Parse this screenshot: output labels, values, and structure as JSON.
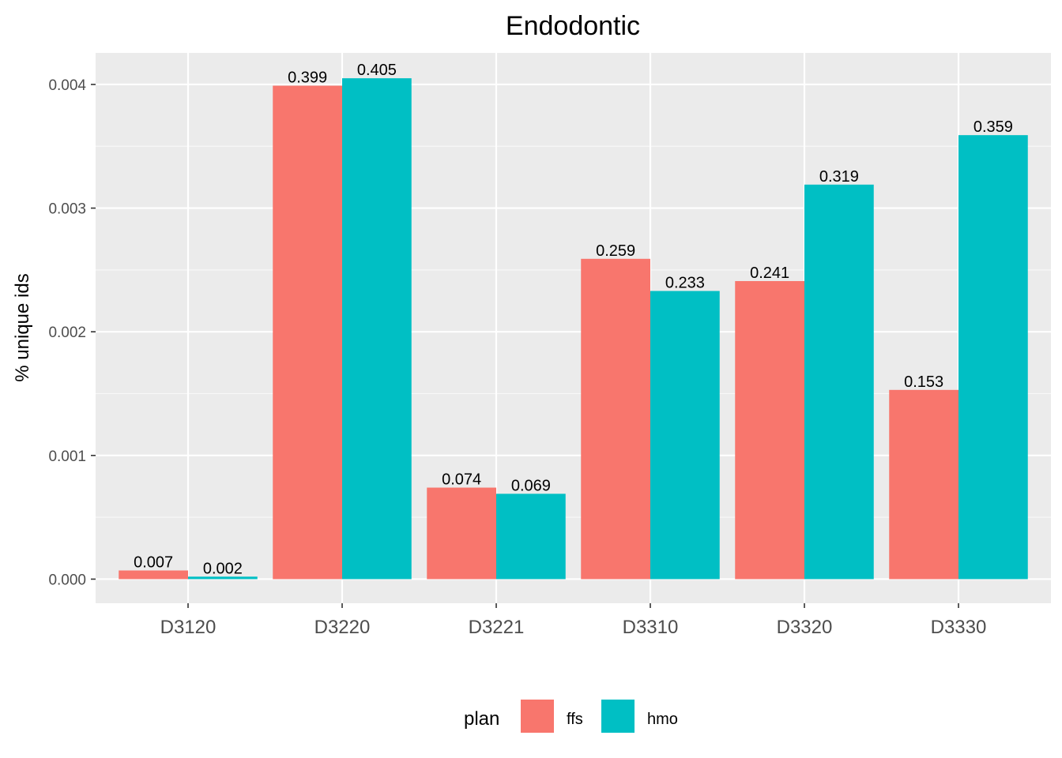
{
  "chart_data": {
    "type": "bar",
    "title": "Endodontic",
    "xlabel": "",
    "ylabel": "% unique ids",
    "categories": [
      "D3120",
      "D3220",
      "D3221",
      "D3310",
      "D3320",
      "D3330"
    ],
    "series": [
      {
        "name": "ffs",
        "color": "#F8766D",
        "values": [
          7e-05,
          0.00399,
          0.00074,
          0.00259,
          0.00241,
          0.00153
        ],
        "labels": [
          "0.007",
          "0.399",
          "0.074",
          "0.259",
          "0.241",
          "0.153"
        ]
      },
      {
        "name": "hmo",
        "color": "#00BFC4",
        "values": [
          2e-05,
          0.00405,
          0.00069,
          0.00233,
          0.00319,
          0.00359
        ],
        "labels": [
          "0.002",
          "0.405",
          "0.069",
          "0.233",
          "0.319",
          "0.359"
        ]
      }
    ],
    "yticks": [
      0.0,
      0.001,
      0.002,
      0.003,
      0.004
    ],
    "ytick_labels": [
      "0.000",
      "0.001",
      "0.002",
      "0.003",
      "0.004"
    ],
    "ylim": [
      -0.000195,
      0.004255
    ],
    "grid": true,
    "panel_background": "#EBEBEB",
    "legend": {
      "title": "plan",
      "position": "bottom"
    }
  }
}
